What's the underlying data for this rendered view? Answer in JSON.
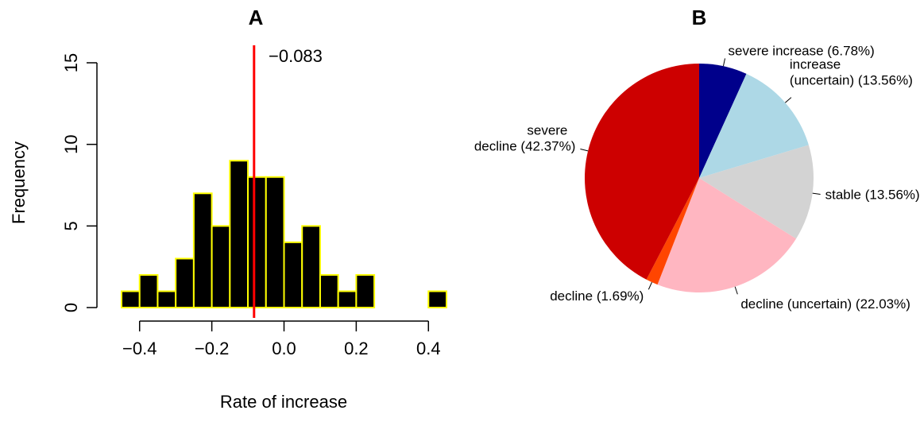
{
  "chart_data": [
    {
      "type": "bar",
      "title": "A",
      "xlabel": "Rate of increase",
      "ylabel": "Frequency",
      "xlim": [
        -0.45,
        0.45
      ],
      "ylim": [
        0,
        15
      ],
      "xticks": [
        "−0.4",
        "−0.2",
        "0.0",
        "0.2",
        "0.4"
      ],
      "yticks": [
        "0",
        "5",
        "10",
        "15"
      ],
      "bin_width": 0.05,
      "bins_start": -0.45,
      "values": [
        1,
        2,
        1,
        3,
        7,
        5,
        9,
        8,
        8,
        4,
        5,
        2,
        1,
        2,
        0,
        0,
        0,
        1
      ],
      "bar_fill": "#000000",
      "bar_border": "#ffff00",
      "reference_line": {
        "x": -0.083,
        "label": "−0.083",
        "color": "#ff0000"
      }
    },
    {
      "type": "pie",
      "title": "B",
      "slices": [
        {
          "label": "severe increase (6.78%)",
          "value": 6.78,
          "color": "#00008b"
        },
        {
          "label": "increase\n(uncertain) (13.56%)",
          "value": 13.56,
          "color": "#add8e6"
        },
        {
          "label": "stable (13.56%)",
          "value": 13.56,
          "color": "#d3d3d3"
        },
        {
          "label": "decline (uncertain) (22.03%)",
          "value": 22.03,
          "color": "#ffb6c1"
        },
        {
          "label": "decline (1.69%)",
          "value": 1.69,
          "color": "#ff4500"
        },
        {
          "label": "severe\ndecline (42.37%)",
          "value": 42.37,
          "color": "#cd0000"
        }
      ]
    }
  ]
}
